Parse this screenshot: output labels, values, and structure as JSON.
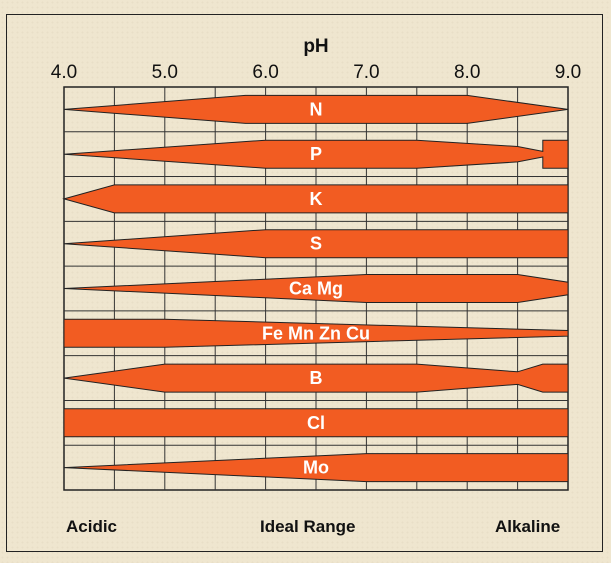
{
  "chart_data": {
    "type": "area",
    "title": "",
    "xlabel": "pH",
    "ylabel": "",
    "xlim": [
      4.0,
      9.0
    ],
    "x_ticks": [
      "4.0",
      "5.0",
      "6.0",
      "7.0",
      "8.0",
      "9.0"
    ],
    "grid_x_step": 0.5,
    "bottom_labels": {
      "left": "Acidic",
      "center": "Ideal Range",
      "right": "Alkaline"
    },
    "band_color": "#f25c22",
    "series": [
      {
        "name": "N",
        "points": [
          [
            4.0,
            0
          ],
          [
            5.8,
            1
          ],
          [
            8.0,
            1
          ],
          [
            9.0,
            0
          ]
        ]
      },
      {
        "name": "P",
        "points": [
          [
            4.0,
            0
          ],
          [
            6.0,
            1
          ],
          [
            7.5,
            1
          ],
          [
            8.5,
            0.55
          ],
          [
            8.75,
            0.2
          ],
          [
            8.75,
            1
          ],
          [
            9.0,
            1
          ]
        ]
      },
      {
        "name": "K",
        "points": [
          [
            4.0,
            0
          ],
          [
            4.5,
            1
          ],
          [
            9.0,
            1
          ]
        ]
      },
      {
        "name": "S",
        "points": [
          [
            4.0,
            0
          ],
          [
            6.0,
            1
          ],
          [
            9.0,
            1
          ]
        ]
      },
      {
        "name": "Ca Mg",
        "points": [
          [
            4.0,
            0
          ],
          [
            7.0,
            1
          ],
          [
            8.5,
            1
          ],
          [
            9.0,
            0.45
          ]
        ]
      },
      {
        "name": "Fe Mn Zn Cu",
        "points": [
          [
            4.0,
            1
          ],
          [
            5.0,
            1
          ],
          [
            9.0,
            0.2
          ]
        ]
      },
      {
        "name": "B",
        "points": [
          [
            4.0,
            0
          ],
          [
            5.0,
            1
          ],
          [
            7.5,
            1
          ],
          [
            8.5,
            0.45
          ],
          [
            8.75,
            1
          ],
          [
            9.0,
            1
          ]
        ]
      },
      {
        "name": "Cl",
        "points": [
          [
            4.0,
            1
          ],
          [
            9.0,
            1
          ]
        ]
      },
      {
        "name": "Mo",
        "points": [
          [
            4.0,
            0
          ],
          [
            7.0,
            1
          ],
          [
            9.0,
            1
          ]
        ]
      }
    ]
  }
}
